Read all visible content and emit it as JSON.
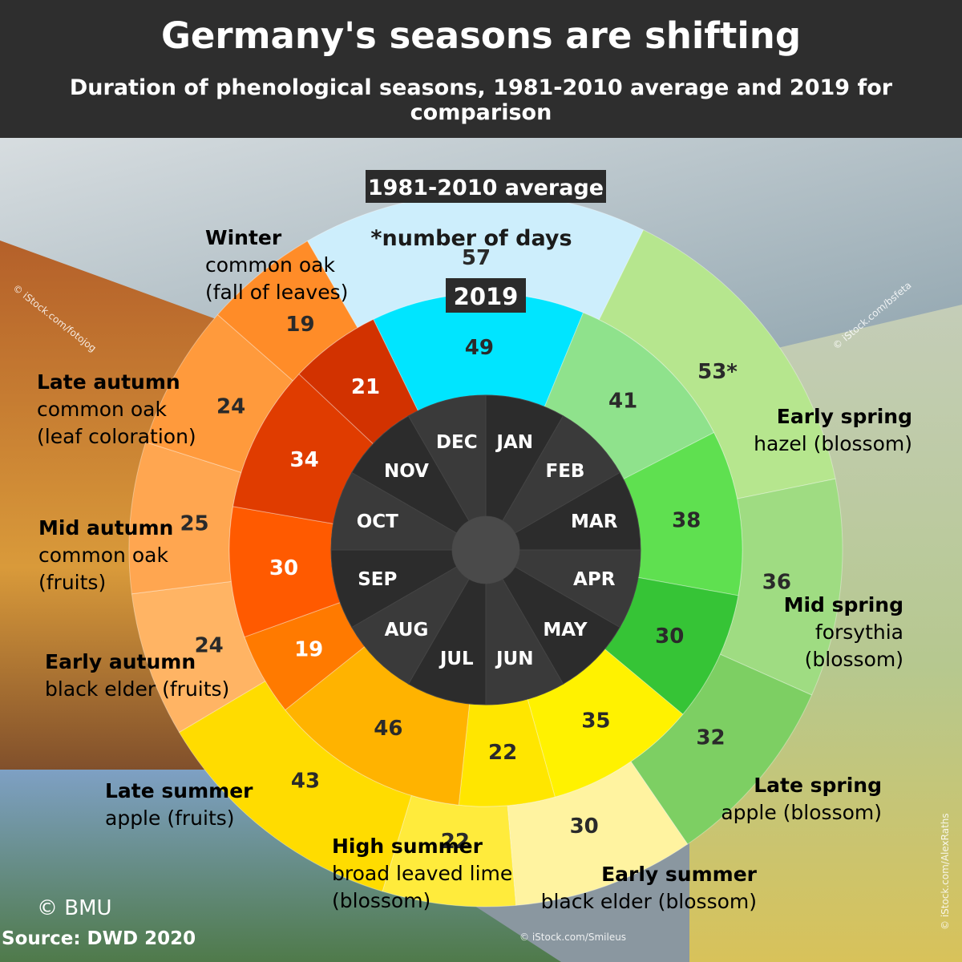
{
  "header": {
    "title": "Germany's seasons are shifting",
    "subtitle": "Duration of phenological seasons, 1981-2010 average and 2019 for comparison"
  },
  "chart_data": {
    "type": "pie",
    "note_label": "*number of days",
    "outer_ring_label": "1981-2010 average",
    "inner_ring_label": "2019",
    "months": [
      "JAN",
      "FEB",
      "MAR",
      "APR",
      "MAY",
      "JUN",
      "JUL",
      "AUG",
      "SEP",
      "OCT",
      "NOV",
      "DEC"
    ],
    "seasons": [
      {
        "name": "Early spring",
        "indicator": [
          "hazel (blossom)"
        ],
        "avg_days": "53*",
        "days_2019": "41",
        "color_avg": "#b6e68e",
        "color_2019": "#8fe28c"
      },
      {
        "name": "Mid spring",
        "indicator": [
          "forsythia",
          "(blossom)"
        ],
        "avg_days": "36",
        "days_2019": "38",
        "color_avg": "#9fdc82",
        "color_2019": "#5fe050"
      },
      {
        "name": "Late spring",
        "indicator": [
          "apple (blossom)"
        ],
        "avg_days": "32",
        "days_2019": "30",
        "color_avg": "#7dcf63",
        "color_2019": "#36c436"
      },
      {
        "name": "Early summer",
        "indicator": [
          "black elder (blossom)"
        ],
        "avg_days": "30",
        "days_2019": "35",
        "color_avg": "#fff3a0",
        "color_2019": "#fff200"
      },
      {
        "name": "High summer",
        "indicator": [
          "broad leaved lime",
          "(blossom)"
        ],
        "avg_days": "22",
        "days_2019": "22",
        "color_avg": "#ffeb3c",
        "color_2019": "#ffe600"
      },
      {
        "name": "Late summer",
        "indicator": [
          "apple (fruits)"
        ],
        "avg_days": "43",
        "days_2019": "46",
        "color_avg": "#ffdc00",
        "color_2019": "#ffb300"
      },
      {
        "name": "Early autumn",
        "indicator": [
          "black elder (fruits)"
        ],
        "avg_days": "24",
        "days_2019": "19",
        "color_avg": "#ffb464",
        "color_2019": "#ff7a00"
      },
      {
        "name": "Mid autumn",
        "indicator": [
          "common oak",
          "(fruits)"
        ],
        "avg_days": "25",
        "days_2019": "30",
        "color_avg": "#ffa650",
        "color_2019": "#ff5a00"
      },
      {
        "name": "Late autumn",
        "indicator": [
          "common oak",
          "(leaf coloration)"
        ],
        "avg_days": "24",
        "days_2019": "34",
        "color_avg": "#ff9a3c",
        "color_2019": "#e03c00"
      },
      {
        "name": "Winter",
        "indicator": [
          "common oak",
          "(fall of leaves)"
        ],
        "avg_days": "19",
        "days_2019": "21",
        "color_avg": "#ff8c28",
        "color_2019": "#d23200"
      },
      {
        "name": "",
        "indicator": [],
        "avg_days": "57",
        "days_2019": "49",
        "color_avg": "#cdeefc",
        "color_2019": "#00e5ff"
      }
    ],
    "seasons_order_note": "clockwise starting near January"
  },
  "footer": {
    "copyright": "© BMU",
    "source": "Source: DWD 2020",
    "photo_credits": [
      "© iStock.com/fotojog",
      "© iStock.com/bsfeta",
      "© iStock.com/AlexRaths",
      "© iStock.com/Smileus"
    ]
  }
}
